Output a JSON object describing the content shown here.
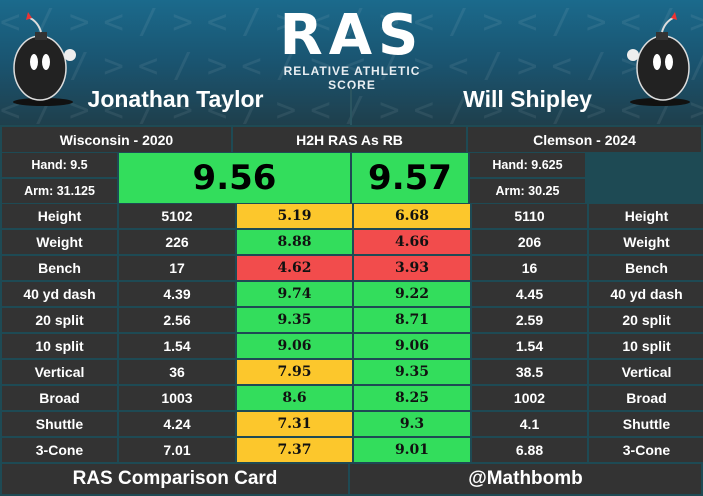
{
  "header": {
    "logo_text": "RAS",
    "logo_subtitle": "RELATIVE ATHLETIC SCORE"
  },
  "players": [
    {
      "name": "Jonathan Taylor",
      "school": "Wisconsin - 2020",
      "hand": "Hand: 9.5",
      "arm": "Arm: 31.125",
      "ras": "9.56"
    },
    {
      "name": "Will Shipley",
      "school": "Clemson - 2024",
      "hand": "Hand: 9.625",
      "arm": "Arm: 30.25",
      "ras": "9.57"
    }
  ],
  "center_title": "H2H RAS As RB",
  "colors": {
    "green": "#33dd5c",
    "yellow": "#fcc72c",
    "red": "#f24c4c"
  },
  "metrics": [
    {
      "label": "Height",
      "p1": "5102",
      "s1": "5.19",
      "c1": "yellow",
      "s2": "6.68",
      "c2": "yellow",
      "p2": "5110"
    },
    {
      "label": "Weight",
      "p1": "226",
      "s1": "8.88",
      "c1": "green",
      "s2": "4.66",
      "c2": "red",
      "p2": "206"
    },
    {
      "label": "Bench",
      "p1": "17",
      "s1": "4.62",
      "c1": "red",
      "s2": "3.93",
      "c2": "red",
      "p2": "16"
    },
    {
      "label": "40 yd dash",
      "p1": "4.39",
      "s1": "9.74",
      "c1": "green",
      "s2": "9.22",
      "c2": "green",
      "p2": "4.45"
    },
    {
      "label": "20 split",
      "p1": "2.56",
      "s1": "9.35",
      "c1": "green",
      "s2": "8.71",
      "c2": "green",
      "p2": "2.59"
    },
    {
      "label": "10 split",
      "p1": "1.54",
      "s1": "9.06",
      "c1": "green",
      "s2": "9.06",
      "c2": "green",
      "p2": "1.54"
    },
    {
      "label": "Vertical",
      "p1": "36",
      "s1": "7.95",
      "c1": "yellow",
      "s2": "9.35",
      "c2": "green",
      "p2": "38.5"
    },
    {
      "label": "Broad",
      "p1": "1003",
      "s1": "8.6",
      "c1": "green",
      "s2": "8.25",
      "c2": "green",
      "p2": "1002"
    },
    {
      "label": "Shuttle",
      "p1": "4.24",
      "s1": "7.31",
      "c1": "yellow",
      "s2": "9.3",
      "c2": "green",
      "p2": "4.1"
    },
    {
      "label": "3-Cone",
      "p1": "7.01",
      "s1": "7.37",
      "c1": "yellow",
      "s2": "9.01",
      "c2": "green",
      "p2": "6.88"
    }
  ],
  "footer": {
    "left": "RAS Comparison Card",
    "right": "@Mathbomb"
  }
}
